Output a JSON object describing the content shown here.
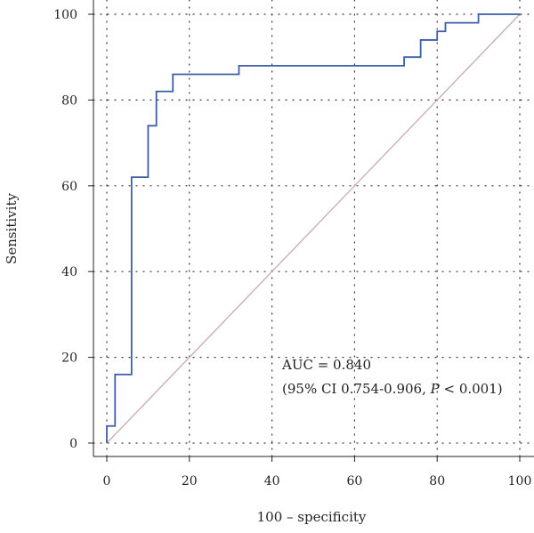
{
  "chart_data": {
    "type": "line",
    "xlabel": "100 – specificity",
    "ylabel": "Sensitivity",
    "xlim": [
      0,
      100
    ],
    "ylim": [
      0,
      100
    ],
    "x_ticks": [
      0,
      20,
      40,
      60,
      80,
      100
    ],
    "y_ticks": [
      0,
      20,
      40,
      60,
      80,
      100
    ],
    "grid": true,
    "series": [
      {
        "name": "",
        "color": "#3d5ea8",
        "x": [
          0,
          0,
          2,
          2,
          6,
          6,
          10,
          10,
          12,
          12,
          16,
          16,
          32,
          32,
          72,
          72,
          76,
          76,
          80,
          80,
          82,
          82,
          90,
          90,
          100
        ],
        "y": [
          0,
          4,
          4,
          16,
          16,
          62,
          62,
          74,
          74,
          82,
          82,
          86,
          86,
          88,
          88,
          90,
          90,
          94,
          94,
          96,
          96,
          98,
          98,
          100,
          100
        ]
      },
      {
        "name": "",
        "color": "#c9a9b4",
        "x": [
          0,
          100
        ],
        "y": [
          0,
          100
        ]
      }
    ],
    "annotations": {
      "auc_line": "AUC = 0.840",
      "ci_prefix": "(95% CI 0.754-0.906, ",
      "p_symbol": "P",
      "p_suffix": " < 0.001)"
    }
  }
}
